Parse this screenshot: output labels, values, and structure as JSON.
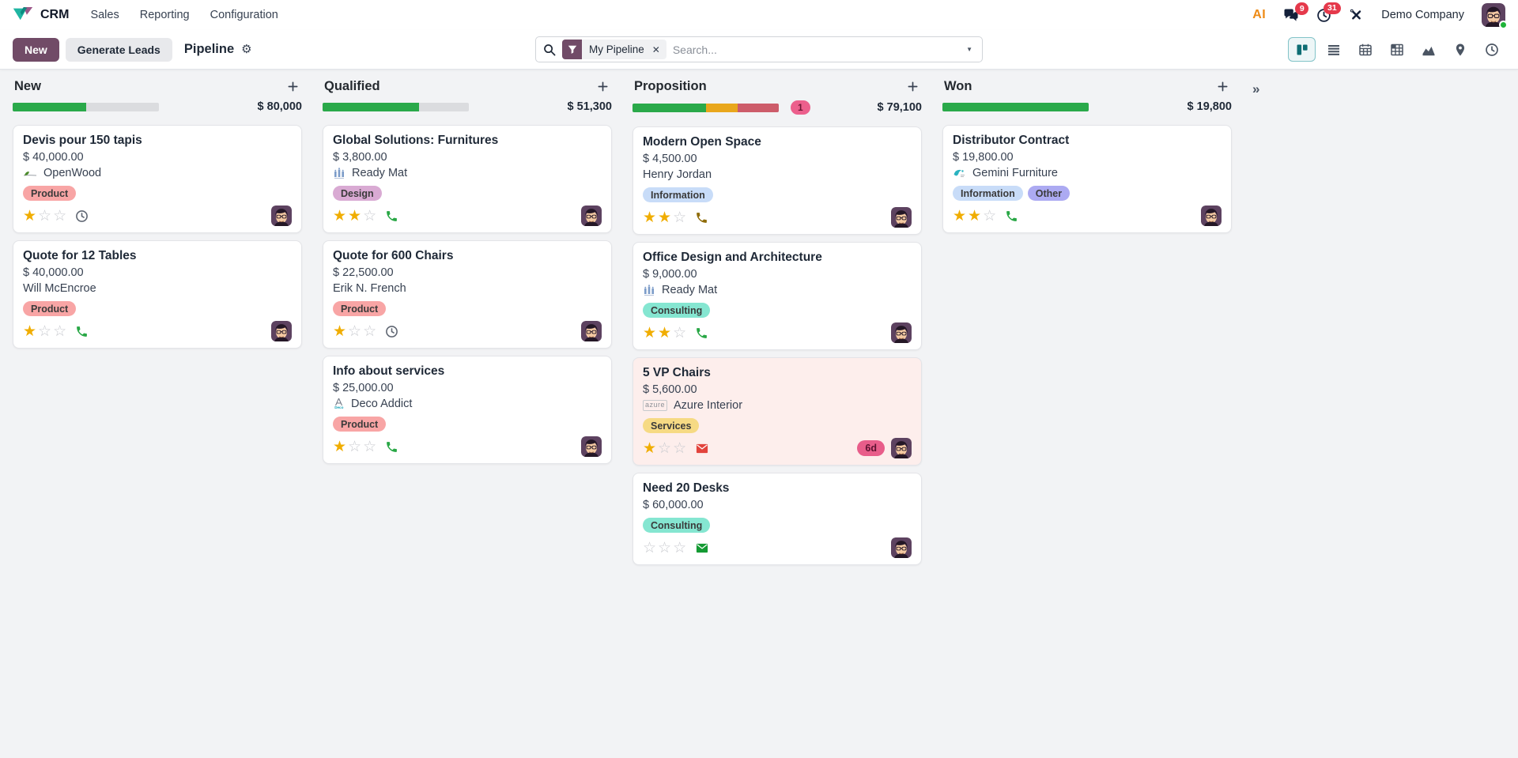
{
  "theme": {
    "brand_primary": "#714B67",
    "content_bg": "#f2f3f5",
    "view_active_border": "#82c3c8",
    "badge_red": "#e5394b",
    "overdue_card_bg": "#fdeeec",
    "star_gold": "#f0ad00"
  },
  "icons": {
    "plus": "+",
    "fold": "»",
    "close": "✕",
    "caret": "▼",
    "gear": "⚙"
  },
  "navbar": {
    "app_name": "CRM",
    "menu": [
      {
        "label": "Sales"
      },
      {
        "label": "Reporting"
      },
      {
        "label": "Configuration"
      }
    ],
    "systray": {
      "ai_label": "AI",
      "messages_count": "9",
      "activities_count": "31",
      "company_name": "Demo Company"
    }
  },
  "control_panel": {
    "new_button": "New",
    "generate_leads_button": "Generate Leads",
    "title": "Pipeline",
    "search": {
      "facet_label": "My Pipeline",
      "placeholder": "Search..."
    },
    "view_switcher": [
      "kanban",
      "list",
      "calendar",
      "pivot",
      "graph",
      "map",
      "activity"
    ]
  },
  "kanban": {
    "columns": [
      {
        "title": "New",
        "amount": "$ 80,000",
        "progress": {
          "segments": [
            {
              "color": "#2aa94a",
              "pct": 50
            }
          ]
        },
        "cards": [
          {
            "title": "Devis pour 150 tapis",
            "amount": "$ 40,000.00",
            "partner": "OpenWood",
            "tags": [
              {
                "label": "Product",
                "bg": "#f8a5a5"
              }
            ],
            "stars": 1,
            "activity": {
              "icon": "clock",
              "color": "#5f6672"
            }
          },
          {
            "title": "Quote for 12 Tables",
            "amount": "$ 40,000.00",
            "partner": "Will McEncroe",
            "tags": [
              {
                "label": "Product",
                "bg": "#f8a5a5"
              }
            ],
            "stars": 1,
            "activity": {
              "icon": "phone",
              "color": "#28a745"
            }
          }
        ]
      },
      {
        "title": "Qualified",
        "amount": "$ 51,300",
        "progress": {
          "segments": [
            {
              "color": "#2aa94a",
              "pct": 66
            }
          ]
        },
        "cards": [
          {
            "title": "Global Solutions: Furnitures",
            "amount": "$ 3,800.00",
            "partner": "Ready Mat",
            "tags": [
              {
                "label": "Design",
                "bg": "#d9aad3"
              }
            ],
            "stars": 2,
            "activity": {
              "icon": "phone",
              "color": "#28a745"
            }
          },
          {
            "title": "Quote for 600 Chairs",
            "amount": "$ 22,500.00",
            "partner": "Erik N. French",
            "tags": [
              {
                "label": "Product",
                "bg": "#f8a5a5"
              }
            ],
            "stars": 1,
            "activity": {
              "icon": "clock",
              "color": "#5f6672"
            }
          },
          {
            "title": "Info about services",
            "amount": "$ 25,000.00",
            "partner": "Deco Addict",
            "tags": [
              {
                "label": "Product",
                "bg": "#f8a5a5"
              }
            ],
            "stars": 1,
            "activity": {
              "icon": "phone",
              "color": "#28a745"
            }
          }
        ]
      },
      {
        "title": "Proposition",
        "amount": "$ 79,100",
        "counter_badge": "1",
        "progress": {
          "segments": [
            {
              "color": "#2aa94a",
              "pct": 50
            },
            {
              "color": "#e9a71c",
              "pct": 22
            },
            {
              "color": "#cd5c6a",
              "pct": 28
            }
          ]
        },
        "cards": [
          {
            "title": "Modern Open Space",
            "amount": "$ 4,500.00",
            "partner": "Henry Jordan",
            "tags": [
              {
                "label": "Information",
                "bg": "#c8dcf8"
              }
            ],
            "stars": 2,
            "activity": {
              "icon": "phone",
              "color": "#8f6c0a"
            }
          },
          {
            "title": "Office Design and Architecture",
            "amount": "$ 9,000.00",
            "partner": "Ready Mat",
            "tags": [
              {
                "label": "Consulting",
                "bg": "#85e6d1"
              }
            ],
            "stars": 2,
            "activity": {
              "icon": "phone",
              "color": "#28a745"
            }
          },
          {
            "title": "5 VP Chairs",
            "amount": "$ 5,600.00",
            "partner": "Azure Interior",
            "tags": [
              {
                "label": "Services",
                "bg": "#f6da84"
              }
            ],
            "stars": 1,
            "activity": {
              "icon": "envelope",
              "color": "#e2433c"
            },
            "deadline_badge": "6d",
            "overdue": true
          },
          {
            "title": "Need 20 Desks",
            "amount": "$ 60,000.00",
            "tags": [
              {
                "label": "Consulting",
                "bg": "#85e6d1"
              }
            ],
            "stars": 0,
            "activity": {
              "icon": "envelope",
              "color": "#149a33"
            }
          }
        ]
      },
      {
        "title": "Won",
        "amount": "$ 19,800",
        "progress": {
          "segments": [
            {
              "color": "#2aa94a",
              "pct": 100
            }
          ]
        },
        "cards": [
          {
            "title": "Distributor Contract",
            "amount": "$ 19,800.00",
            "partner": "Gemini Furniture",
            "tags": [
              {
                "label": "Information",
                "bg": "#c8dcf8"
              },
              {
                "label": "Other",
                "bg": "#acaaf2"
              }
            ],
            "stars": 2,
            "activity": {
              "icon": "phone",
              "color": "#28a745"
            }
          }
        ]
      }
    ]
  }
}
